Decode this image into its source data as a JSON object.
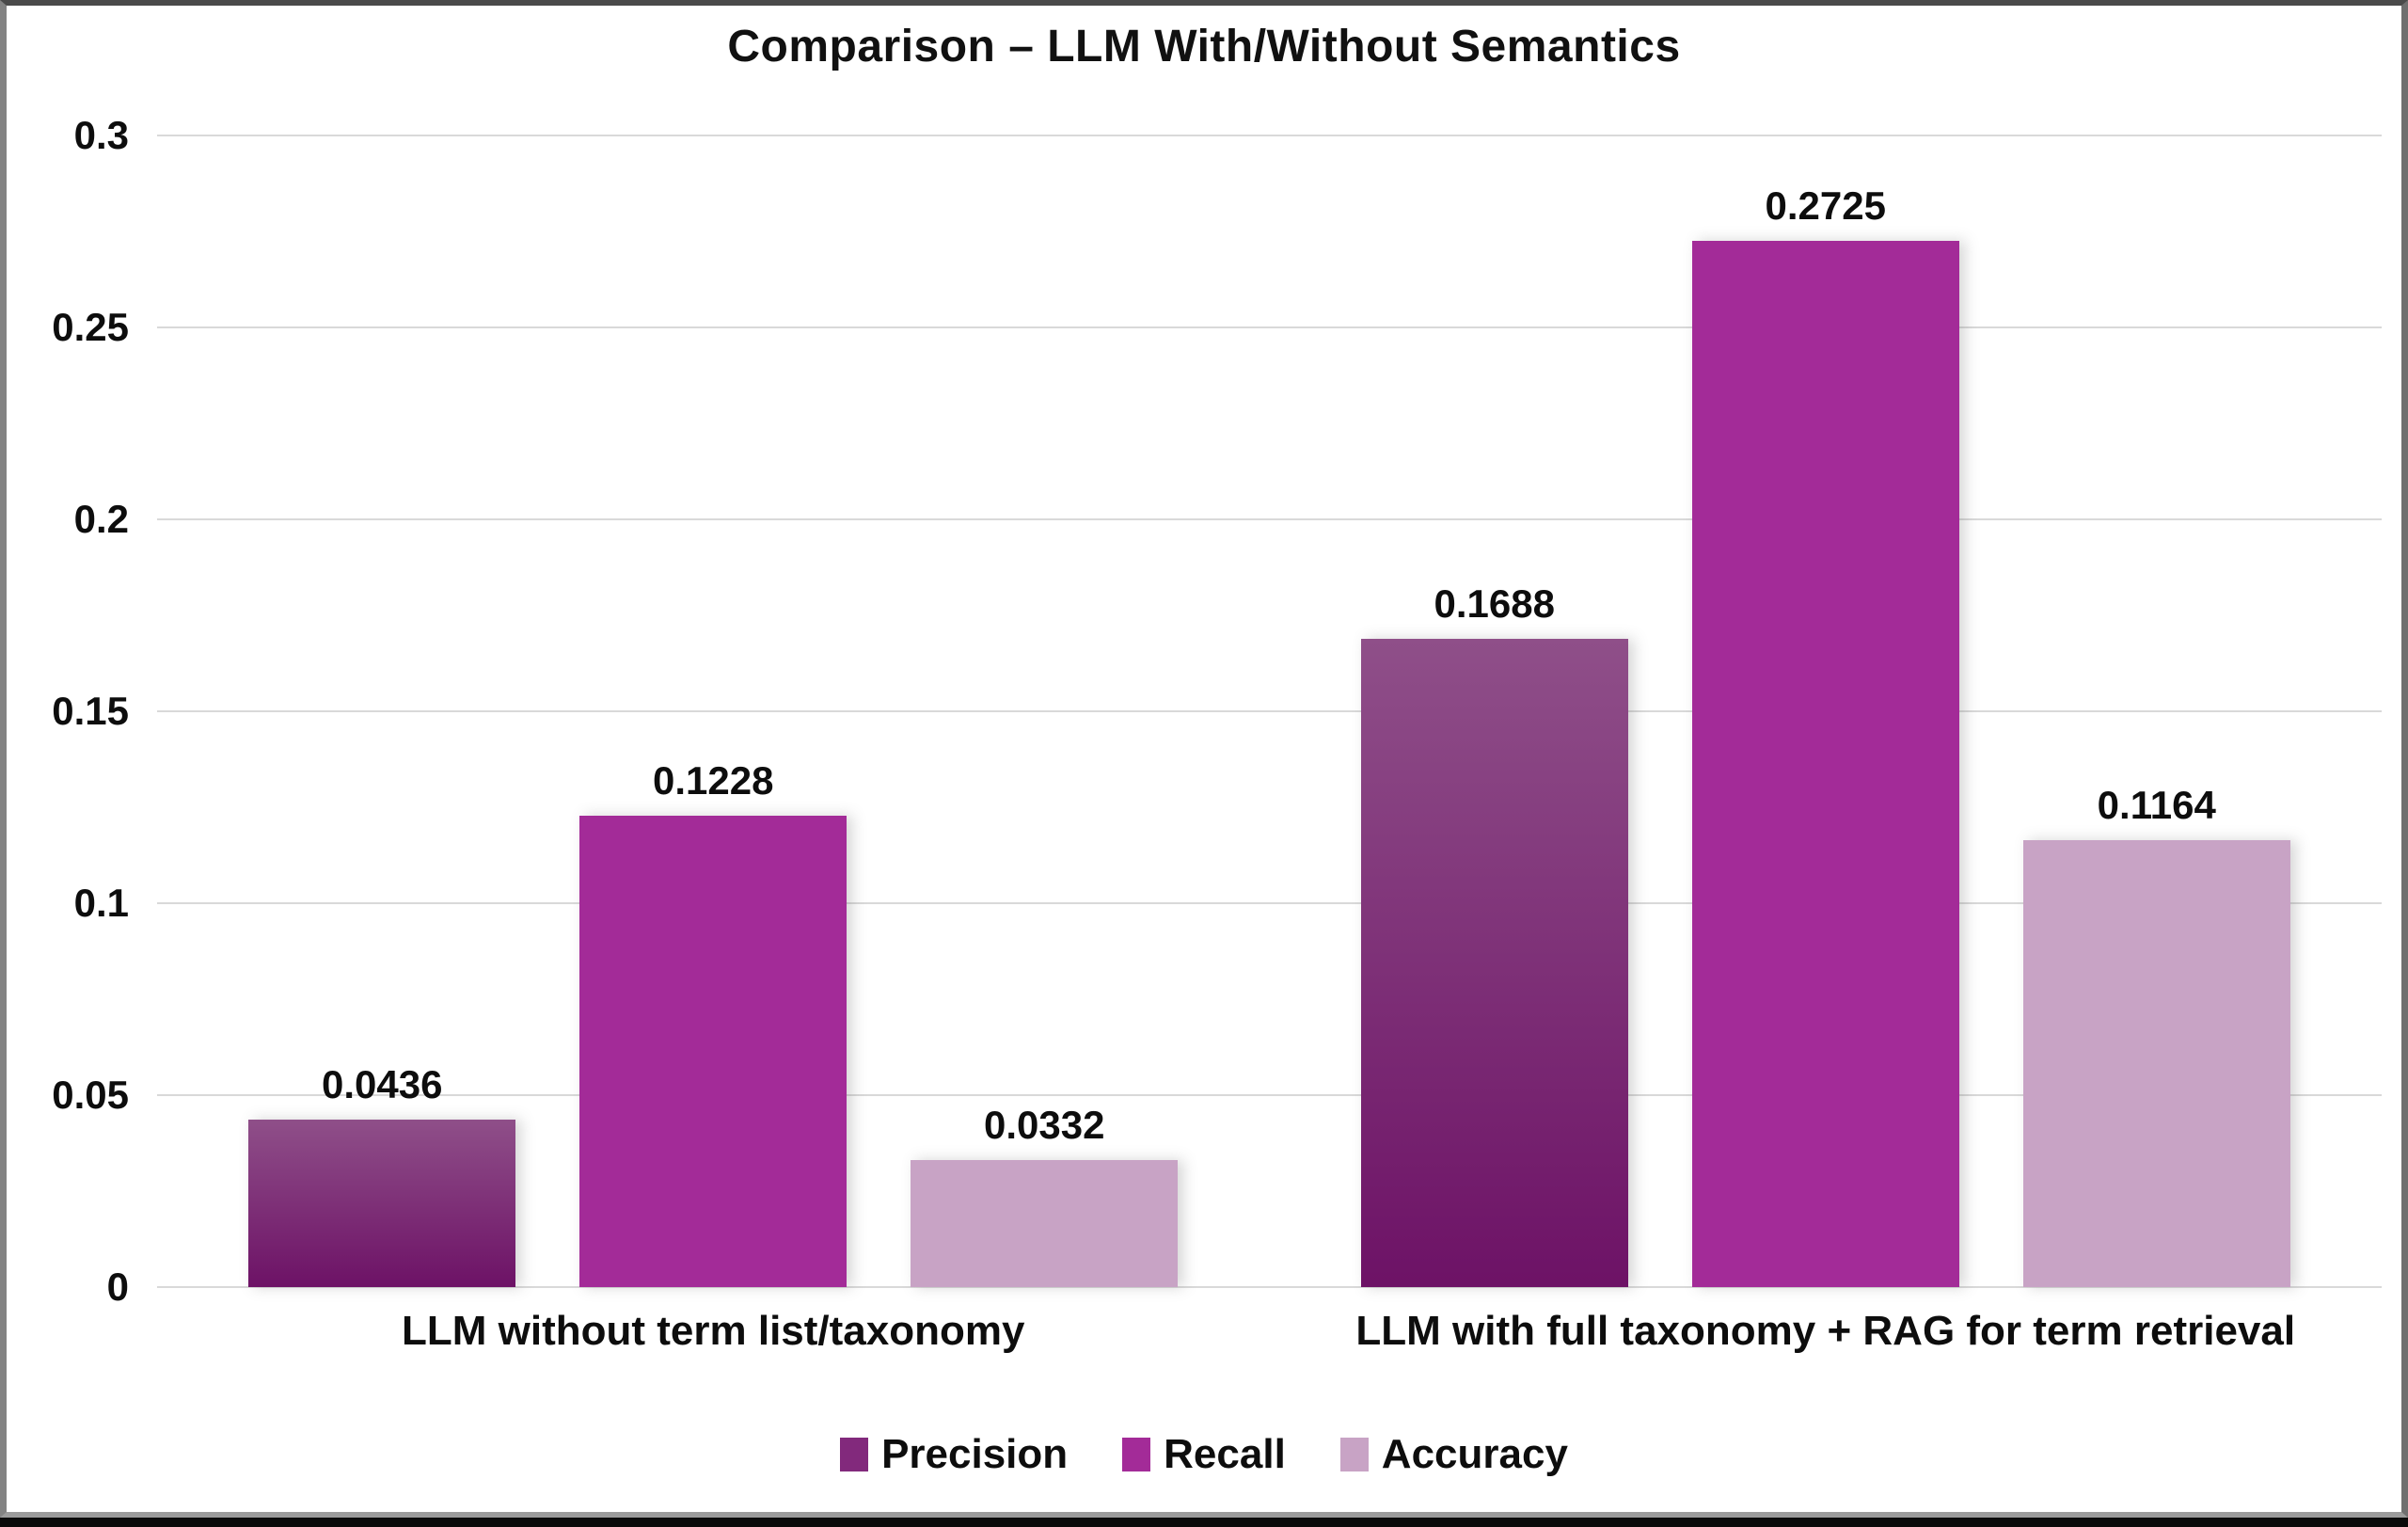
{
  "title": "Comparison – LLM With/Without Semantics",
  "chart_data": {
    "type": "bar",
    "title": "Comparison – LLM With/Without Semantics",
    "categories": [
      "LLM without term list/taxonomy",
      "LLM with full taxonomy + RAG for term retrieval"
    ],
    "series": [
      {
        "name": "Precision",
        "values": [
          0.0436,
          0.1688
        ],
        "color": "#82297c",
        "gradient_top": "#8f4f89",
        "gradient_bottom": "#6d1266"
      },
      {
        "name": "Recall",
        "values": [
          0.1228,
          0.2725
        ],
        "color": "#a32b98"
      },
      {
        "name": "Accuracy",
        "values": [
          0.0332,
          0.1164
        ],
        "color": "#c8a3c5"
      }
    ],
    "value_labels": [
      [
        "0.0436",
        "0.1228",
        "0.0332"
      ],
      [
        "0.1688",
        "0.2725",
        "0.1164"
      ]
    ],
    "xlabel": "",
    "ylabel": "",
    "ylim": [
      0,
      0.3
    ],
    "yticks": [
      "0.3",
      "0.25",
      "0.2",
      "0.15",
      "0.1",
      "0.05",
      "0"
    ],
    "grid": true,
    "legend_position": "bottom",
    "colors": {
      "grid": "#d9d9d9",
      "text": "#0d0d0d",
      "background": "#ffffff"
    }
  }
}
